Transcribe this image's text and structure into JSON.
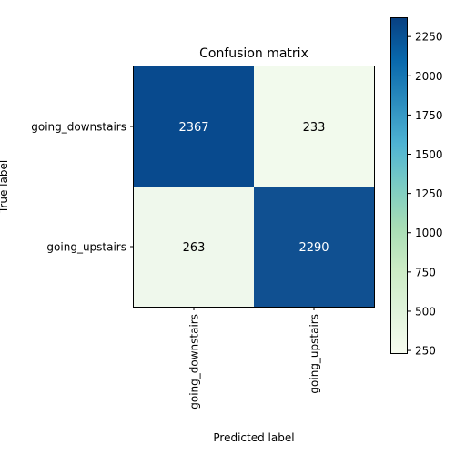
{
  "chart_data": {
    "type": "heatmap",
    "title": "Confusion matrix",
    "xlabel": "Predicted label",
    "ylabel": "True label",
    "row_labels": [
      "going_downstairs",
      "going_upstairs"
    ],
    "col_labels": [
      "going_downstairs",
      "going_upstairs"
    ],
    "values": [
      [
        2367,
        233
      ],
      [
        263,
        2290
      ]
    ],
    "value_labels": [
      [
        "2367",
        "233"
      ],
      [
        "263",
        "2290"
      ]
    ],
    "colormap": "GnBu",
    "colorbar": {
      "range": [
        233,
        2367
      ],
      "ticks": [
        250,
        500,
        750,
        1000,
        1250,
        1500,
        1750,
        2000,
        2250
      ],
      "tick_labels": [
        "250",
        "500",
        "750",
        "1000",
        "1250",
        "1500",
        "1750",
        "2000",
        "2250"
      ]
    },
    "colors": {
      "high_cell": "#084a8e",
      "low_cell": "#f2faed",
      "text_on_dark": "#ffffff",
      "text_on_light": "#000000"
    }
  }
}
